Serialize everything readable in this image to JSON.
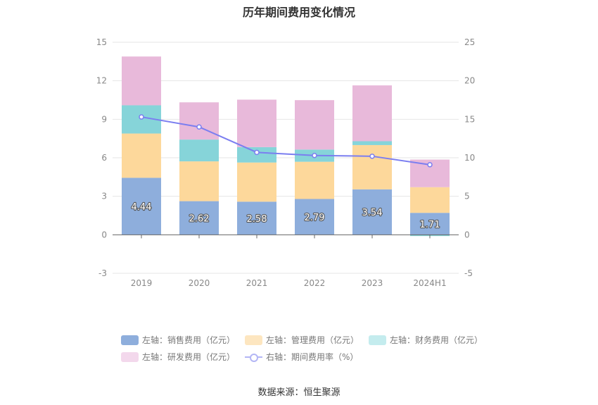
{
  "title": "历年期间费用变化情况",
  "source": "数据来源：恒生聚源",
  "chart_data": {
    "type": "bar",
    "stacked": true,
    "categories": [
      "2019",
      "2020",
      "2021",
      "2022",
      "2023",
      "2024H1"
    ],
    "left_axis": {
      "ylim": [
        -3,
        15
      ],
      "ticks": [
        "-3",
        "0",
        "3",
        "6",
        "9",
        "12",
        "15"
      ]
    },
    "right_axis": {
      "ylim": [
        -5,
        25
      ],
      "ticks": [
        "-5",
        "0",
        "5",
        "10",
        "15",
        "20",
        "25"
      ]
    },
    "grid": true,
    "legend_position": "bottom",
    "series": [
      {
        "name": "左轴：销售费用（亿元）",
        "axis": "left",
        "color": "#8eaedc",
        "values": [
          4.44,
          2.62,
          2.58,
          2.79,
          3.54,
          1.71
        ],
        "labels": [
          "4.44",
          "2.62",
          "2.58",
          "2.79",
          "3.54",
          "1.71"
        ]
      },
      {
        "name": "左轴：管理费用（亿元）",
        "axis": "left",
        "color": "#fdd89b",
        "values": [
          3.45,
          3.1,
          3.05,
          2.9,
          3.45,
          2.0
        ]
      },
      {
        "name": "左轴：财务费用（亿元）",
        "axis": "left",
        "color": "#86d4d9",
        "values": [
          2.2,
          1.7,
          1.2,
          0.95,
          0.3,
          -0.1
        ]
      },
      {
        "name": "左轴：研发费用（亿元）",
        "axis": "left",
        "color": "#e8b9da",
        "values": [
          3.8,
          2.9,
          3.7,
          3.85,
          4.35,
          2.15
        ]
      },
      {
        "name": "右轴：期间费用率（%）",
        "axis": "right",
        "type": "line",
        "color": "#7b7ef0",
        "values": [
          15.3,
          14.0,
          10.7,
          10.3,
          10.2,
          9.1
        ]
      }
    ]
  },
  "legend_colors": {
    "sales": "#8eaedc",
    "admin": "#fde6c0",
    "finance": "#c4ecee",
    "rd": "#f3d8ec",
    "rate": "#b3b6f5"
  }
}
